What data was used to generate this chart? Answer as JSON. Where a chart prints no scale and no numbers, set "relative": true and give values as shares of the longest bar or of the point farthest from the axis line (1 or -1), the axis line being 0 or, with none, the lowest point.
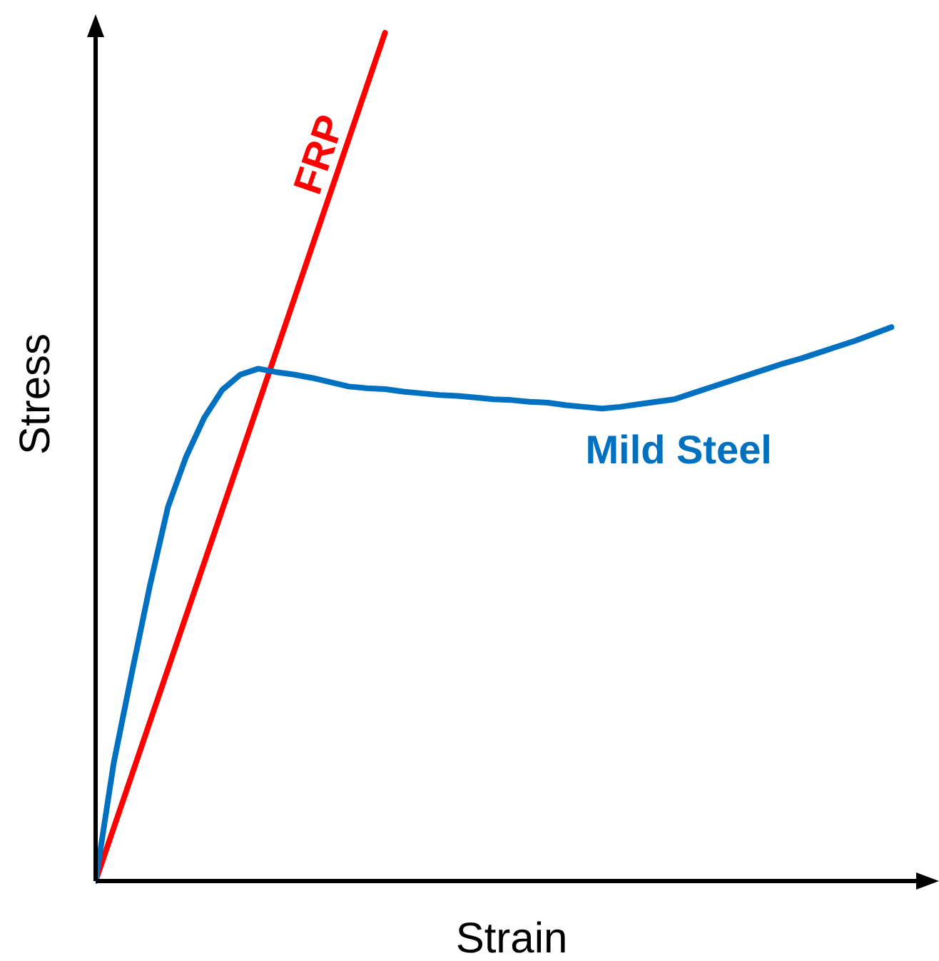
{
  "chart_data": {
    "type": "line",
    "relative": true,
    "xlabel": "Strain",
    "ylabel": "Stress",
    "grid": false,
    "legend": false,
    "line_style": "solid",
    "marker": "none",
    "categories": [
      null,
      null,
      null,
      null,
      null,
      null,
      null,
      null,
      null,
      null,
      null,
      null,
      null,
      null,
      null,
      null,
      null,
      null,
      null,
      null,
      null,
      null,
      null,
      null,
      null,
      null,
      null,
      null,
      null,
      null,
      null,
      null,
      null,
      null,
      null,
      null,
      null,
      null,
      null,
      null,
      null,
      null,
      null,
      null,
      null,
      null,
      null
    ],
    "series": [
      {
        "name": "FRP",
        "color": "#ff0000",
        "values": [
          0,
          0.0625,
          0.125,
          0.1875,
          0.25,
          0.3125,
          0.375,
          0.4375,
          0.5,
          0.5625,
          0.625,
          0.6875,
          0.75,
          0.8125,
          0.875,
          0.9375,
          1,
          null,
          null,
          null,
          null,
          null,
          null,
          null,
          null,
          null,
          null,
          null,
          null,
          null,
          null,
          null,
          null,
          null,
          null,
          null,
          null,
          null,
          null,
          null,
          null,
          null,
          null,
          null,
          null,
          null,
          null
        ]
      },
      {
        "name": "Mild Steel",
        "color": "#0070c0",
        "values": [
          0,
          0.139,
          0.245,
          0.348,
          0.441,
          0.5,
          0.546,
          0.579,
          0.597,
          0.604,
          0.6,
          0.597,
          0.593,
          0.588,
          0.583,
          0.581,
          0.58,
          0.577,
          0.575,
          0.573,
          0.572,
          0.57,
          0.568,
          0.567,
          0.565,
          0.564,
          0.561,
          0.559,
          0.557,
          0.559,
          0.562,
          0.565,
          0.568,
          0.575,
          0.582,
          0.589,
          0.596,
          0.603,
          0.61,
          0.616,
          0.623,
          0.63,
          0.637,
          0.645,
          0.653,
          null,
          null
        ]
      }
    ]
  }
}
